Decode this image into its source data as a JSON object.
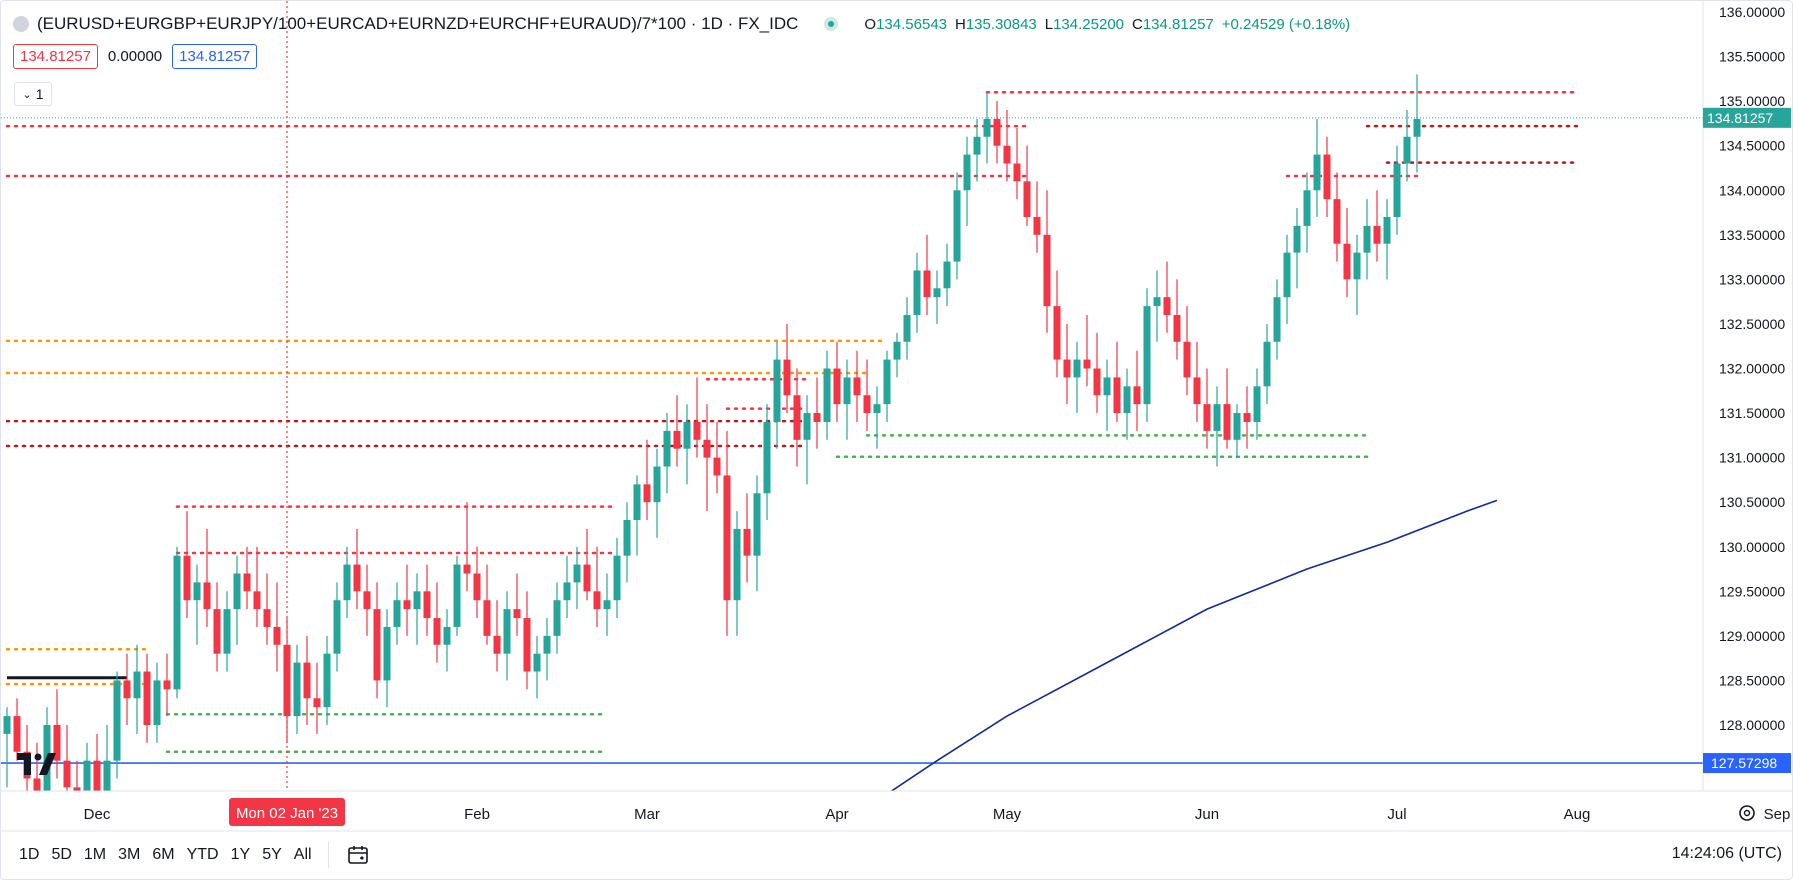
{
  "header": {
    "symbol": "(EURUSD+EURGBP+EURJPY/100+EURCAD+EURNZD+EURCHF+EURAUD)/7*100 · 1D · FX_IDC",
    "open_label": "O",
    "open": "134.56543",
    "high_label": "H",
    "high": "135.30843",
    "low_label": "L",
    "low": "134.25200",
    "close_label": "C",
    "close": "134.81257",
    "change": "+0.24529 (+0.18%)"
  },
  "price_boxes": {
    "bid": "134.81257",
    "spread": "0.00000",
    "ask": "134.81257"
  },
  "indicator_toggle": {
    "label": "1"
  },
  "ranges": [
    "1D",
    "5D",
    "1M",
    "3M",
    "6M",
    "YTD",
    "1Y",
    "5Y",
    "All"
  ],
  "clock": "14:24:06 (UTC)",
  "crosshair_date": "Mon 02 Jan '23",
  "colors": {
    "up": "#26a69a",
    "down": "#f23645",
    "ma": "#0d2b9a",
    "hline": "#2962ff"
  },
  "chart_data": {
    "type": "candlestick",
    "y_ticks": [
      "136.00000",
      "135.50000",
      "135.00000",
      "134.50000",
      "134.00000",
      "133.50000",
      "133.00000",
      "132.50000",
      "132.00000",
      "131.50000",
      "131.00000",
      "130.50000",
      "130.00000",
      "129.50000",
      "129.00000",
      "128.50000",
      "128.00000"
    ],
    "x_ticks": [
      {
        "label": "Dec",
        "x": 0.09
      },
      {
        "label": "Feb",
        "x": 0.47
      },
      {
        "label": "Mar",
        "x": 0.64
      },
      {
        "label": "Apr",
        "x": 0.83
      },
      {
        "label": "May",
        "x": 1.0
      },
      {
        "label": "Jun",
        "x": 1.2
      },
      {
        "label": "Jul",
        "x": 1.39
      },
      {
        "label": "Aug",
        "x": 1.57
      },
      {
        "label": "Sep",
        "x": 1.77
      }
    ],
    "crosshair_x": 0.28,
    "last_price": {
      "value": 134.81257,
      "label": "134.81257"
    },
    "hline": {
      "value": 127.57298,
      "label": "127.57298"
    },
    "ma": [
      [
        0.85,
        127.0
      ],
      [
        0.93,
        127.6
      ],
      [
        1.0,
        128.1
      ],
      [
        1.1,
        128.7
      ],
      [
        1.2,
        129.3
      ],
      [
        1.3,
        129.75
      ],
      [
        1.38,
        130.05
      ],
      [
        1.46,
        130.4
      ],
      [
        1.49,
        130.52
      ]
    ],
    "levels": [
      {
        "x1": 0.0,
        "x2": 1.02,
        "y": 134.72,
        "color": "#f23645"
      },
      {
        "x1": 0.0,
        "x2": 1.02,
        "y": 134.16,
        "color": "#f23645"
      },
      {
        "x1": 0.98,
        "x2": 1.57,
        "y": 135.1,
        "color": "#f23645"
      },
      {
        "x1": 1.36,
        "x2": 1.57,
        "y": 134.72,
        "color": "#b71c1c"
      },
      {
        "x1": 1.38,
        "x2": 1.57,
        "y": 134.31,
        "color": "#b71c1c"
      },
      {
        "x1": 1.28,
        "x2": 1.41,
        "y": 134.16,
        "color": "#f23645"
      },
      {
        "x1": 0.0,
        "x2": 0.88,
        "y": 132.31,
        "color": "#ff9800"
      },
      {
        "x1": 0.0,
        "x2": 0.86,
        "y": 131.95,
        "color": "#ff9800"
      },
      {
        "x1": 0.7,
        "x2": 0.8,
        "y": 131.88,
        "color": "#f23645"
      },
      {
        "x1": 0.0,
        "x2": 0.8,
        "y": 131.41,
        "color": "#b71c1c"
      },
      {
        "x1": 0.0,
        "x2": 0.8,
        "y": 131.13,
        "color": "#b71c1c"
      },
      {
        "x1": 0.72,
        "x2": 0.8,
        "y": 131.55,
        "color": "#f23645"
      },
      {
        "x1": 0.86,
        "x2": 1.36,
        "y": 131.25,
        "color": "#4caf50"
      },
      {
        "x1": 0.83,
        "x2": 1.36,
        "y": 131.01,
        "color": "#4caf50"
      },
      {
        "x1": 0.17,
        "x2": 0.61,
        "y": 130.45,
        "color": "#f23645"
      },
      {
        "x1": 0.17,
        "x2": 0.61,
        "y": 129.93,
        "color": "#f23645"
      },
      {
        "x1": 0.16,
        "x2": 0.6,
        "y": 128.12,
        "color": "#4caf50"
      },
      {
        "x1": 0.16,
        "x2": 0.6,
        "y": 127.7,
        "color": "#4caf50"
      },
      {
        "x1": 0.0,
        "x2": 0.14,
        "y": 128.85,
        "color": "#ff9800"
      },
      {
        "x1": 0.0,
        "x2": 0.14,
        "y": 128.46,
        "color": "#ff9800"
      }
    ],
    "dark_segment": {
      "x1": 0.0,
      "x2": 0.12,
      "y": 128.53,
      "color": "#131722"
    },
    "candles": [
      [
        0.0,
        127.9,
        128.2,
        127.3,
        128.1
      ],
      [
        0.01,
        128.1,
        128.3,
        127.6,
        127.7
      ],
      [
        0.02,
        127.7,
        128.0,
        127.2,
        127.4
      ],
      [
        0.03,
        127.4,
        127.8,
        126.9,
        127.1
      ],
      [
        0.04,
        127.1,
        128.2,
        126.9,
        128.0
      ],
      [
        0.05,
        128.0,
        128.4,
        127.4,
        127.6
      ],
      [
        0.06,
        127.6,
        128.0,
        127.0,
        127.3
      ],
      [
        0.07,
        127.3,
        127.6,
        126.8,
        127.0
      ],
      [
        0.08,
        127.0,
        127.8,
        126.8,
        127.6
      ],
      [
        0.09,
        127.6,
        127.9,
        126.9,
        127.2
      ],
      [
        0.1,
        127.2,
        128.0,
        127.0,
        127.6
      ],
      [
        0.11,
        127.6,
        128.6,
        127.4,
        128.5
      ],
      [
        0.12,
        128.5,
        128.8,
        128.0,
        128.3
      ],
      [
        0.13,
        128.3,
        128.9,
        127.9,
        128.6
      ],
      [
        0.14,
        128.6,
        128.8,
        127.8,
        128.0
      ],
      [
        0.15,
        128.0,
        128.7,
        127.8,
        128.5
      ],
      [
        0.16,
        128.5,
        128.8,
        128.1,
        128.4
      ],
      [
        0.17,
        128.4,
        130.0,
        128.3,
        129.9
      ],
      [
        0.18,
        129.9,
        130.4,
        129.2,
        129.4
      ],
      [
        0.19,
        129.4,
        129.8,
        128.9,
        129.6
      ],
      [
        0.2,
        129.6,
        130.2,
        129.1,
        129.3
      ],
      [
        0.21,
        129.3,
        129.6,
        128.6,
        128.8
      ],
      [
        0.22,
        128.8,
        129.5,
        128.6,
        129.3
      ],
      [
        0.23,
        129.3,
        129.9,
        128.9,
        129.7
      ],
      [
        0.24,
        129.7,
        130.0,
        129.3,
        129.5
      ],
      [
        0.25,
        129.5,
        130.0,
        129.1,
        129.3
      ],
      [
        0.26,
        129.3,
        129.7,
        128.9,
        129.1
      ],
      [
        0.27,
        129.1,
        129.6,
        128.6,
        128.9
      ],
      [
        0.28,
        128.9,
        129.2,
        127.8,
        128.1
      ],
      [
        0.29,
        128.1,
        128.9,
        127.9,
        128.7
      ],
      [
        0.3,
        128.7,
        129.0,
        128.0,
        128.3
      ],
      [
        0.31,
        128.3,
        128.7,
        127.9,
        128.2
      ],
      [
        0.32,
        128.2,
        129.0,
        128.0,
        128.8
      ],
      [
        0.33,
        128.8,
        129.6,
        128.6,
        129.4
      ],
      [
        0.34,
        129.4,
        130.0,
        129.2,
        129.8
      ],
      [
        0.35,
        129.8,
        130.2,
        129.3,
        129.5
      ],
      [
        0.36,
        129.5,
        129.8,
        129.0,
        129.3
      ],
      [
        0.37,
        129.3,
        129.6,
        128.3,
        128.5
      ],
      [
        0.38,
        128.5,
        129.3,
        128.2,
        129.1
      ],
      [
        0.39,
        129.1,
        129.6,
        128.9,
        129.4
      ],
      [
        0.4,
        129.4,
        129.8,
        129.0,
        129.3
      ],
      [
        0.41,
        129.3,
        129.7,
        128.9,
        129.5
      ],
      [
        0.42,
        129.5,
        129.8,
        129.0,
        129.2
      ],
      [
        0.43,
        129.2,
        129.6,
        128.7,
        128.9
      ],
      [
        0.44,
        128.9,
        129.3,
        128.6,
        129.1
      ],
      [
        0.45,
        129.1,
        129.9,
        129.0,
        129.8
      ],
      [
        0.46,
        129.8,
        130.5,
        129.5,
        129.7
      ],
      [
        0.47,
        129.7,
        130.0,
        129.2,
        129.4
      ],
      [
        0.48,
        129.4,
        129.8,
        128.9,
        129.0
      ],
      [
        0.49,
        129.0,
        129.4,
        128.6,
        128.8
      ],
      [
        0.5,
        128.8,
        129.5,
        128.5,
        129.3
      ],
      [
        0.51,
        129.3,
        129.7,
        129.0,
        129.2
      ],
      [
        0.52,
        129.2,
        129.5,
        128.4,
        128.6
      ],
      [
        0.53,
        128.6,
        129.0,
        128.3,
        128.8
      ],
      [
        0.54,
        128.8,
        129.2,
        128.5,
        129.0
      ],
      [
        0.55,
        129.0,
        129.6,
        128.8,
        129.4
      ],
      [
        0.56,
        129.4,
        129.9,
        129.2,
        129.6
      ],
      [
        0.57,
        129.6,
        130.0,
        129.3,
        129.8
      ],
      [
        0.58,
        129.8,
        130.2,
        129.4,
        129.5
      ],
      [
        0.59,
        129.5,
        130.0,
        129.1,
        129.3
      ],
      [
        0.6,
        129.3,
        129.7,
        129.0,
        129.4
      ],
      [
        0.61,
        129.4,
        130.1,
        129.2,
        129.9
      ],
      [
        0.62,
        129.9,
        130.5,
        129.6,
        130.3
      ],
      [
        0.63,
        130.3,
        130.8,
        129.9,
        130.7
      ],
      [
        0.64,
        130.7,
        131.2,
        130.3,
        130.5
      ],
      [
        0.65,
        130.5,
        131.1,
        130.1,
        130.9
      ],
      [
        0.66,
        130.9,
        131.5,
        130.6,
        131.3
      ],
      [
        0.67,
        131.3,
        131.7,
        130.9,
        131.1
      ],
      [
        0.68,
        131.1,
        131.6,
        130.7,
        131.4
      ],
      [
        0.69,
        131.4,
        131.9,
        131.0,
        131.2
      ],
      [
        0.7,
        131.2,
        131.6,
        130.4,
        131.0
      ],
      [
        0.71,
        131.0,
        131.4,
        130.6,
        130.8
      ],
      [
        0.72,
        130.8,
        131.3,
        129.0,
        129.4
      ],
      [
        0.73,
        129.4,
        130.4,
        129.0,
        130.2
      ],
      [
        0.74,
        130.2,
        130.6,
        129.6,
        129.9
      ],
      [
        0.75,
        129.9,
        130.8,
        129.5,
        130.6
      ],
      [
        0.76,
        130.6,
        131.6,
        130.3,
        131.4
      ],
      [
        0.77,
        131.4,
        132.3,
        131.1,
        132.1
      ],
      [
        0.78,
        132.1,
        132.5,
        131.5,
        131.7
      ],
      [
        0.79,
        131.7,
        132.0,
        130.9,
        131.2
      ],
      [
        0.8,
        131.2,
        131.7,
        130.7,
        131.5
      ],
      [
        0.81,
        131.5,
        131.9,
        131.1,
        131.4
      ],
      [
        0.82,
        131.4,
        132.2,
        131.2,
        132.0
      ],
      [
        0.83,
        132.0,
        132.3,
        131.4,
        131.6
      ],
      [
        0.84,
        131.6,
        132.1,
        131.2,
        131.9
      ],
      [
        0.85,
        131.9,
        132.2,
        131.4,
        131.7
      ],
      [
        0.86,
        131.7,
        132.1,
        131.3,
        131.5
      ],
      [
        0.87,
        131.5,
        131.8,
        131.1,
        131.6
      ],
      [
        0.88,
        131.6,
        132.2,
        131.4,
        132.1
      ],
      [
        0.89,
        132.1,
        132.4,
        131.9,
        132.3
      ],
      [
        0.9,
        132.3,
        132.8,
        132.1,
        132.6
      ],
      [
        0.91,
        132.6,
        133.3,
        132.4,
        133.1
      ],
      [
        0.92,
        133.1,
        133.5,
        132.6,
        132.8
      ],
      [
        0.93,
        132.8,
        133.1,
        132.5,
        132.9
      ],
      [
        0.94,
        132.9,
        133.4,
        132.7,
        133.2
      ],
      [
        0.95,
        133.2,
        134.2,
        133.0,
        134.0
      ],
      [
        0.96,
        134.0,
        134.6,
        133.6,
        134.4
      ],
      [
        0.97,
        134.4,
        134.8,
        134.1,
        134.6
      ],
      [
        0.98,
        134.6,
        135.1,
        134.3,
        134.8
      ],
      [
        0.99,
        134.8,
        135.0,
        134.3,
        134.5
      ],
      [
        1.0,
        134.5,
        134.9,
        134.1,
        134.3
      ],
      [
        1.01,
        134.3,
        134.7,
        133.9,
        134.1
      ],
      [
        1.02,
        134.1,
        134.5,
        133.6,
        133.7
      ],
      [
        1.03,
        133.7,
        134.1,
        133.3,
        133.5
      ],
      [
        1.04,
        133.5,
        134.0,
        132.4,
        132.7
      ],
      [
        1.05,
        132.7,
        133.1,
        131.9,
        132.1
      ],
      [
        1.06,
        132.1,
        132.5,
        131.6,
        131.9
      ],
      [
        1.07,
        131.9,
        132.3,
        131.5,
        132.1
      ],
      [
        1.08,
        132.1,
        132.6,
        131.8,
        132.0
      ],
      [
        1.09,
        132.0,
        132.4,
        131.5,
        131.7
      ],
      [
        1.1,
        131.7,
        132.1,
        131.3,
        131.9
      ],
      [
        1.11,
        131.9,
        132.3,
        131.4,
        131.5
      ],
      [
        1.12,
        131.5,
        132.0,
        131.2,
        131.8
      ],
      [
        1.13,
        131.8,
        132.2,
        131.3,
        131.6
      ],
      [
        1.14,
        131.6,
        132.9,
        131.4,
        132.7
      ],
      [
        1.15,
        132.7,
        133.1,
        132.3,
        132.8
      ],
      [
        1.16,
        132.8,
        133.2,
        132.4,
        132.6
      ],
      [
        1.17,
        132.6,
        133.0,
        132.1,
        132.3
      ],
      [
        1.18,
        132.3,
        132.7,
        131.7,
        131.9
      ],
      [
        1.19,
        131.9,
        132.3,
        131.4,
        131.6
      ],
      [
        1.2,
        131.6,
        132.0,
        131.1,
        131.3
      ],
      [
        1.21,
        131.3,
        131.8,
        130.9,
        131.6
      ],
      [
        1.22,
        131.6,
        132.0,
        131.1,
        131.2
      ],
      [
        1.23,
        131.2,
        131.6,
        131.0,
        131.5
      ],
      [
        1.24,
        131.5,
        131.8,
        131.1,
        131.4
      ],
      [
        1.25,
        131.4,
        132.0,
        131.2,
        131.8
      ],
      [
        1.26,
        131.8,
        132.5,
        131.6,
        132.3
      ],
      [
        1.27,
        132.3,
        133.0,
        132.1,
        132.8
      ],
      [
        1.28,
        132.8,
        133.5,
        132.5,
        133.3
      ],
      [
        1.29,
        133.3,
        133.8,
        132.9,
        133.6
      ],
      [
        1.3,
        133.6,
        134.2,
        133.3,
        134.0
      ],
      [
        1.31,
        134.0,
        134.8,
        133.7,
        134.4
      ],
      [
        1.32,
        134.4,
        134.6,
        133.7,
        133.9
      ],
      [
        1.33,
        133.9,
        134.2,
        133.2,
        133.4
      ],
      [
        1.34,
        133.4,
        133.8,
        132.8,
        133.0
      ],
      [
        1.35,
        133.0,
        133.5,
        132.6,
        133.3
      ],
      [
        1.36,
        133.3,
        133.9,
        133.0,
        133.6
      ],
      [
        1.37,
        133.6,
        134.0,
        133.2,
        133.4
      ],
      [
        1.38,
        133.4,
        133.9,
        133.0,
        133.7
      ],
      [
        1.39,
        133.7,
        134.5,
        133.5,
        134.3
      ],
      [
        1.4,
        134.3,
        134.9,
        134.1,
        134.6
      ],
      [
        1.41,
        134.6,
        135.3,
        134.2,
        134.8
      ]
    ]
  }
}
